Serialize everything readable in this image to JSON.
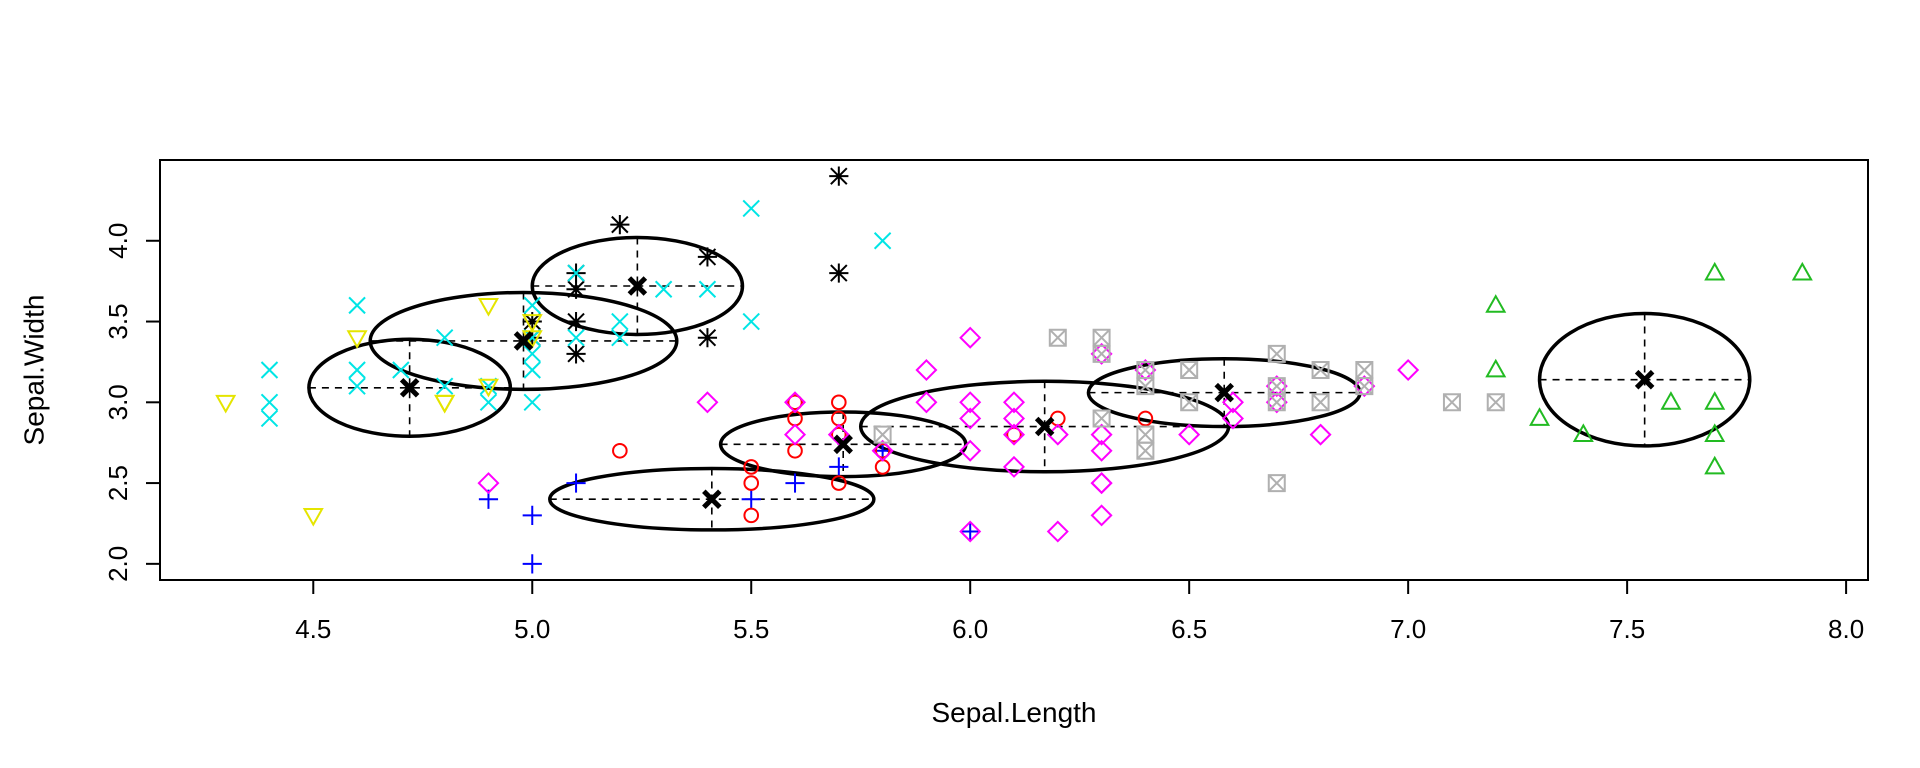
{
  "chart_data": {
    "type": "scatter",
    "title": "",
    "xlabel": "Sepal.Length",
    "ylabel": "Sepal.Width",
    "xlim": [
      4.15,
      8.05
    ],
    "ylim": [
      1.9,
      4.5
    ],
    "xticks": [
      4.5,
      5.0,
      5.5,
      6.0,
      6.5,
      7.0,
      7.5,
      8.0
    ],
    "xtick_labels": [
      "4.5",
      "5.0",
      "5.5",
      "6.0",
      "6.5",
      "7.0",
      "7.5",
      "8.0"
    ],
    "yticks": [
      2.0,
      2.5,
      3.0,
      3.5,
      4.0
    ],
    "ytick_labels": [
      "2.0",
      "2.5",
      "3.0",
      "3.5",
      "4.0"
    ],
    "grid": false,
    "legend": "none",
    "series": [
      {
        "name": "cluster-black-asterisk",
        "color": "#000000",
        "marker": "asterisk",
        "points": [
          [
            5.0,
            3.5
          ],
          [
            5.1,
            3.5
          ],
          [
            5.1,
            3.7
          ],
          [
            5.1,
            3.3
          ],
          [
            5.2,
            4.1
          ],
          [
            5.4,
            3.9
          ],
          [
            5.4,
            3.4
          ],
          [
            5.7,
            4.4
          ],
          [
            5.7,
            3.8
          ],
          [
            5.1,
            3.8
          ],
          [
            5.0,
            3.4
          ]
        ],
        "center": [
          5.24,
          3.72
        ],
        "radii": [
          0.24,
          0.3
        ]
      },
      {
        "name": "cluster-cyan-x",
        "color": "#00e5e5",
        "marker": "x",
        "points": [
          [
            4.4,
            3.2
          ],
          [
            4.4,
            3.0
          ],
          [
            4.4,
            2.9
          ],
          [
            4.6,
            3.6
          ],
          [
            4.6,
            3.2
          ],
          [
            4.6,
            3.1
          ],
          [
            4.7,
            3.2
          ],
          [
            4.8,
            3.4
          ],
          [
            4.8,
            3.1
          ],
          [
            4.9,
            3.1
          ],
          [
            4.9,
            3.0
          ],
          [
            5.0,
            3.6
          ],
          [
            5.0,
            3.4
          ],
          [
            5.0,
            3.3
          ],
          [
            5.0,
            3.2
          ],
          [
            5.0,
            3.0
          ],
          [
            5.1,
            3.8
          ],
          [
            5.1,
            3.4
          ],
          [
            5.2,
            3.5
          ],
          [
            5.2,
            3.4
          ],
          [
            5.3,
            3.7
          ],
          [
            5.4,
            3.7
          ],
          [
            5.5,
            4.2
          ],
          [
            5.5,
            3.5
          ],
          [
            5.8,
            4.0
          ]
        ],
        "center": [
          4.98,
          3.38
        ],
        "radii": [
          0.35,
          0.3
        ]
      },
      {
        "name": "cluster-yellow-triangle-down",
        "color": "#e5e500",
        "marker": "triangle-down",
        "points": [
          [
            4.3,
            3.0
          ],
          [
            4.5,
            2.3
          ],
          [
            4.6,
            3.4
          ],
          [
            4.8,
            3.0
          ],
          [
            4.8,
            3.0
          ],
          [
            4.9,
            3.6
          ],
          [
            4.9,
            3.1
          ],
          [
            5.0,
            3.5
          ],
          [
            5.0,
            3.4
          ]
        ],
        "center": [
          4.72,
          3.09
        ],
        "radii": [
          0.23,
          0.3
        ]
      },
      {
        "name": "cluster-blue-plus",
        "color": "#0000ff",
        "marker": "plus",
        "points": [
          [
            4.9,
            2.4
          ],
          [
            5.0,
            2.3
          ],
          [
            5.0,
            2.0
          ],
          [
            5.1,
            2.5
          ],
          [
            5.5,
            2.4
          ],
          [
            5.6,
            2.5
          ],
          [
            5.7,
            2.6
          ],
          [
            5.8,
            2.7
          ],
          [
            6.0,
            2.2
          ]
        ],
        "center": [
          5.41,
          2.4
        ],
        "radii": [
          0.37,
          0.19
        ]
      },
      {
        "name": "cluster-red-circle",
        "color": "#ff0000",
        "marker": "circle",
        "points": [
          [
            5.2,
            2.7
          ],
          [
            5.5,
            2.6
          ],
          [
            5.5,
            2.5
          ],
          [
            5.5,
            2.3
          ],
          [
            5.6,
            3.0
          ],
          [
            5.6,
            3.0
          ],
          [
            5.6,
            2.9
          ],
          [
            5.6,
            2.7
          ],
          [
            5.7,
            3.0
          ],
          [
            5.7,
            2.9
          ],
          [
            5.7,
            2.8
          ],
          [
            5.7,
            2.5
          ],
          [
            5.8,
            2.7
          ],
          [
            5.8,
            2.6
          ],
          [
            6.2,
            2.9
          ],
          [
            6.4,
            2.9
          ],
          [
            6.1,
            2.8
          ],
          [
            5.8,
            2.7
          ]
        ],
        "center": [
          5.71,
          2.74
        ],
        "radii": [
          0.28,
          0.2
        ]
      },
      {
        "name": "cluster-magenta-diamond",
        "color": "#ff00ff",
        "marker": "diamond",
        "points": [
          [
            4.9,
            2.5
          ],
          [
            5.4,
            3.0
          ],
          [
            5.6,
            3.0
          ],
          [
            5.6,
            2.8
          ],
          [
            5.7,
            2.8
          ],
          [
            5.8,
            2.7
          ],
          [
            5.9,
            3.2
          ],
          [
            5.9,
            3.0
          ],
          [
            6.0,
            3.4
          ],
          [
            6.0,
            3.0
          ],
          [
            6.0,
            2.9
          ],
          [
            6.0,
            2.7
          ],
          [
            6.0,
            2.2
          ],
          [
            6.1,
            3.0
          ],
          [
            6.1,
            2.9
          ],
          [
            6.1,
            2.8
          ],
          [
            6.1,
            2.6
          ],
          [
            6.2,
            2.8
          ],
          [
            6.2,
            2.2
          ],
          [
            6.3,
            3.3
          ],
          [
            6.3,
            2.8
          ],
          [
            6.3,
            2.7
          ],
          [
            6.3,
            2.5
          ],
          [
            6.3,
            2.3
          ],
          [
            6.4,
            3.2
          ],
          [
            6.5,
            2.8
          ],
          [
            6.6,
            3.0
          ],
          [
            6.6,
            2.9
          ],
          [
            6.7,
            3.1
          ],
          [
            6.7,
            3.0
          ],
          [
            6.8,
            2.8
          ],
          [
            6.9,
            3.1
          ],
          [
            7.0,
            3.2
          ],
          [
            6.3,
            2.5
          ]
        ],
        "center": [
          6.17,
          2.85
        ],
        "radii": [
          0.42,
          0.28
        ]
      },
      {
        "name": "cluster-grey-boxed-x",
        "color": "#b0b0b0",
        "marker": "boxed-x",
        "points": [
          [
            5.8,
            2.8
          ],
          [
            6.2,
            3.4
          ],
          [
            6.3,
            3.4
          ],
          [
            6.3,
            3.3
          ],
          [
            6.3,
            2.9
          ],
          [
            6.4,
            3.2
          ],
          [
            6.4,
            3.1
          ],
          [
            6.4,
            2.8
          ],
          [
            6.4,
            2.7
          ],
          [
            6.5,
            3.2
          ],
          [
            6.5,
            3.0
          ],
          [
            6.7,
            3.3
          ],
          [
            6.7,
            3.1
          ],
          [
            6.7,
            3.0
          ],
          [
            6.7,
            2.5
          ],
          [
            6.8,
            3.2
          ],
          [
            6.8,
            3.0
          ],
          [
            6.9,
            3.2
          ],
          [
            6.9,
            3.1
          ],
          [
            7.1,
            3.0
          ],
          [
            7.2,
            3.0
          ]
        ],
        "center": [
          6.58,
          3.06
        ],
        "radii": [
          0.31,
          0.21
        ]
      },
      {
        "name": "cluster-green-triangle-up",
        "color": "#22bb22",
        "marker": "triangle-up",
        "points": [
          [
            7.2,
            3.6
          ],
          [
            7.2,
            3.2
          ],
          [
            7.3,
            2.9
          ],
          [
            7.4,
            2.8
          ],
          [
            7.6,
            3.0
          ],
          [
            7.7,
            3.8
          ],
          [
            7.7,
            3.0
          ],
          [
            7.7,
            2.8
          ],
          [
            7.7,
            2.6
          ],
          [
            7.9,
            3.8
          ]
        ],
        "center": [
          7.54,
          3.14
        ],
        "radii": [
          0.24,
          0.41
        ]
      }
    ]
  }
}
